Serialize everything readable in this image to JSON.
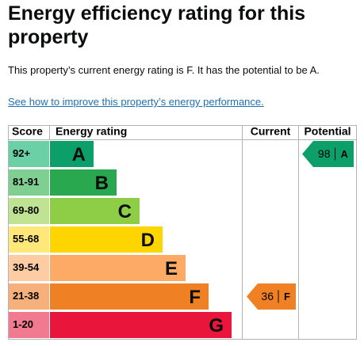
{
  "title": "Energy efficiency rating for this property",
  "summary": "This property’s current energy rating is F. It has the potential to be A.",
  "link": "See how to improve this property’s energy performance.",
  "chart": {
    "headers": {
      "score": "Score",
      "rating": "Energy rating",
      "current": "Current",
      "potential": "Potential"
    },
    "bands": [
      {
        "score": "92+",
        "letter": "A",
        "color": "#0c9f6a",
        "light": "#6cd0a6"
      },
      {
        "score": "81-91",
        "letter": "B",
        "color": "#2aa84f",
        "light": "#7fcf93"
      },
      {
        "score": "69-80",
        "letter": "C",
        "color": "#8dce46",
        "light": "#bfe293"
      },
      {
        "score": "55-68",
        "letter": "D",
        "color": "#ffd500",
        "light": "#ffe77a"
      },
      {
        "score": "39-54",
        "letter": "E",
        "color": "#fcaa65",
        "light": "#fdcca3"
      },
      {
        "score": "21-38",
        "letter": "F",
        "color": "#ef8023",
        "light": "#f5b07b"
      },
      {
        "score": "1-20",
        "letter": "G",
        "color": "#e9153b",
        "light": "#f27a90"
      }
    ],
    "current": {
      "value": 36,
      "letter": "F"
    },
    "potential": {
      "value": 98,
      "letter": "A"
    }
  }
}
